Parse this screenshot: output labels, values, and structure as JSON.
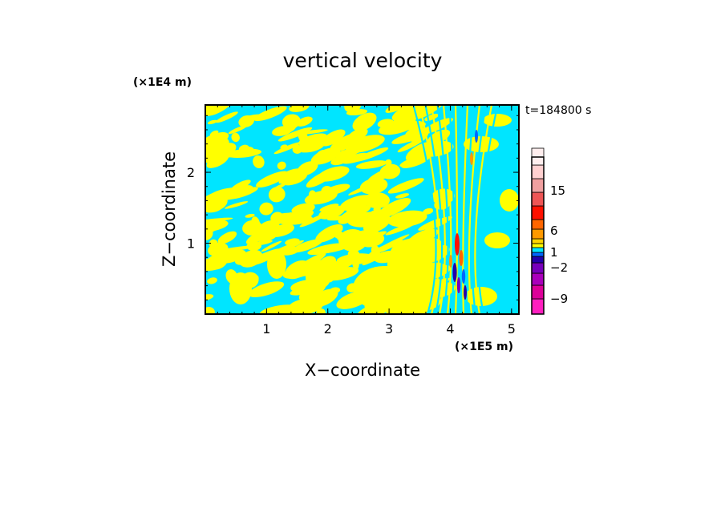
{
  "chart_data": {
    "type": "heatmap",
    "title": "vertical velocity",
    "xlabel": "X−coordinate",
    "ylabel": "Z−coordinate",
    "x_unit": "(×1E5 m)",
    "y_unit": "(×1E4 m)",
    "time_label": "t=184800 s",
    "xlim": [
      0,
      5.12
    ],
    "ylim": [
      0,
      2.95
    ],
    "x_ticks": [
      1,
      2,
      3,
      4,
      5
    ],
    "y_ticks": [
      1,
      2
    ],
    "x_tick_labels": [
      "1",
      "2",
      "3",
      "4",
      "5"
    ],
    "y_tick_labels": [
      "1",
      "2"
    ],
    "field_colors": {
      "negative_weak": "#00e5ff",
      "positive_weak": "#ffff00"
    },
    "colorbar": {
      "levels_bottom_to_top": [
        {
          "color": "#ff1fbf"
        },
        {
          "color": "#dd0099"
        },
        {
          "color": "#aa00bb"
        },
        {
          "color": "#7700bb"
        },
        {
          "color": "#2200aa"
        },
        {
          "color": "#0066ff"
        },
        {
          "color": "#00e5ff"
        },
        {
          "color": "#ffff00"
        },
        {
          "color": "#ffd400"
        },
        {
          "color": "#ff9900"
        },
        {
          "color": "#ff6600"
        },
        {
          "color": "#ff1100"
        },
        {
          "color": "#ee5555"
        },
        {
          "color": "#f0a0a0"
        },
        {
          "color": "#ffd0d0"
        },
        {
          "color": "#ffeeee"
        }
      ],
      "labels": [
        {
          "value": "-9",
          "text": "−9"
        },
        {
          "value": "-2",
          "text": "−2"
        },
        {
          "value": "1",
          "text": "1"
        },
        {
          "value": "6",
          "text": "6"
        },
        {
          "value": "15",
          "text": "15"
        }
      ]
    }
  }
}
